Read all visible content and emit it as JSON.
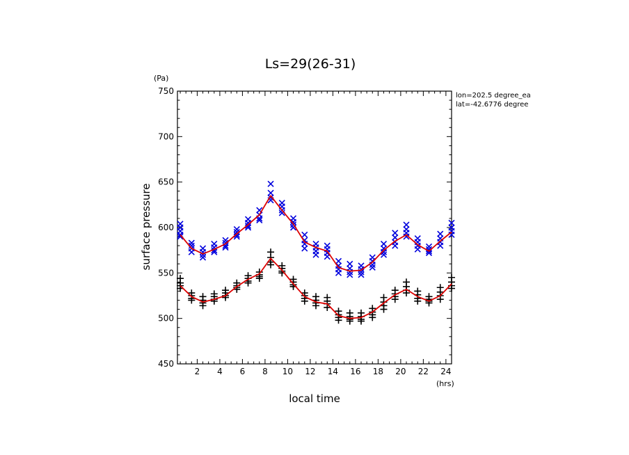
{
  "chart_data": {
    "type": "scatter",
    "title": "Ls=29(26-31)",
    "xlabel": "local time",
    "ylabel": "surface pressure",
    "x_unit": "(hrs)",
    "y_unit": "(Pa)",
    "annotation_lines": [
      "lon=202.5 degree_ea",
      "lat=-42.6776 degree"
    ],
    "xlim": [
      0.25,
      24.5
    ],
    "ylim": [
      450,
      750
    ],
    "x_ticks": [
      2,
      4,
      6,
      8,
      10,
      12,
      14,
      16,
      18,
      20,
      22,
      24
    ],
    "y_ticks": [
      450,
      500,
      550,
      600,
      650,
      700,
      750
    ],
    "grid": false,
    "colors": {
      "upper_markers": "#0000dd",
      "lower_markers": "#000000",
      "fit_line": "#dd0000"
    },
    "series": [
      {
        "marker": "x",
        "x": [
          0.5,
          0.5,
          0.5,
          0.5,
          0.5,
          1.5,
          1.5,
          1.5,
          1.5,
          2.5,
          2.5,
          2.5,
          2.5,
          3.5,
          3.5,
          3.5,
          3.5,
          4.5,
          4.5,
          4.5,
          4.5,
          5.5,
          5.5,
          5.5,
          5.5,
          6.5,
          6.5,
          6.5,
          6.5,
          7.5,
          7.5,
          7.5,
          7.5,
          8.5,
          8.5,
          8.5,
          8.5,
          9.5,
          9.5,
          9.5,
          9.5,
          10.5,
          10.5,
          10.5,
          10.5,
          11.5,
          11.5,
          11.5,
          11.5,
          12.5,
          12.5,
          12.5,
          12.5,
          13.5,
          13.5,
          13.5,
          13.5,
          14.5,
          14.5,
          14.5,
          14.5,
          15.5,
          15.5,
          15.5,
          15.5,
          16.5,
          16.5,
          16.5,
          16.5,
          17.5,
          17.5,
          17.5,
          17.5,
          18.5,
          18.5,
          18.5,
          18.5,
          19.5,
          19.5,
          19.5,
          19.5,
          20.5,
          20.5,
          20.5,
          20.5,
          21.5,
          21.5,
          21.5,
          21.5,
          22.5,
          22.5,
          22.5,
          22.5,
          23.5,
          23.5,
          23.5,
          23.5,
          24.5,
          24.5,
          24.5,
          24.5
        ],
        "y": [
          604,
          600,
          596,
          592,
          590,
          583,
          580,
          577,
          573,
          577,
          573,
          570,
          567,
          582,
          578,
          575,
          573,
          586,
          583,
          580,
          578,
          598,
          595,
          592,
          590,
          609,
          605,
          602,
          600,
          619,
          614,
          610,
          608,
          648,
          638,
          633,
          630,
          627,
          623,
          619,
          616,
          610,
          606,
          603,
          600,
          592,
          586,
          582,
          577,
          582,
          578,
          574,
          570,
          580,
          576,
          572,
          568,
          563,
          558,
          554,
          550,
          560,
          555,
          551,
          548,
          558,
          554,
          551,
          548,
          567,
          563,
          559,
          556,
          582,
          577,
          573,
          570,
          594,
          589,
          584,
          580,
          603,
          598,
          594,
          590,
          588,
          584,
          580,
          576,
          579,
          576,
          574,
          572,
          593,
          588,
          584,
          580,
          605,
          600,
          596,
          592
        ]
      },
      {
        "marker": "+",
        "x": [
          0.5,
          0.5,
          0.5,
          0.5,
          1.5,
          1.5,
          1.5,
          1.5,
          2.5,
          2.5,
          2.5,
          2.5,
          3.5,
          3.5,
          3.5,
          3.5,
          4.5,
          4.5,
          4.5,
          4.5,
          5.5,
          5.5,
          5.5,
          5.5,
          6.5,
          6.5,
          6.5,
          6.5,
          7.5,
          7.5,
          7.5,
          7.5,
          8.5,
          8.5,
          8.5,
          8.5,
          9.5,
          9.5,
          9.5,
          9.5,
          10.5,
          10.5,
          10.5,
          10.5,
          11.5,
          11.5,
          11.5,
          11.5,
          12.5,
          12.5,
          12.5,
          12.5,
          13.5,
          13.5,
          13.5,
          13.5,
          14.5,
          14.5,
          14.5,
          14.5,
          15.5,
          15.5,
          15.5,
          15.5,
          16.5,
          16.5,
          16.5,
          16.5,
          17.5,
          17.5,
          17.5,
          17.5,
          18.5,
          18.5,
          18.5,
          18.5,
          19.5,
          19.5,
          19.5,
          19.5,
          20.5,
          20.5,
          20.5,
          20.5,
          21.5,
          21.5,
          21.5,
          21.5,
          22.5,
          22.5,
          22.5,
          22.5,
          23.5,
          23.5,
          23.5,
          23.5,
          24.5,
          24.5,
          24.5,
          24.5
        ],
        "y": [
          544,
          539,
          536,
          533,
          528,
          525,
          522,
          520,
          524,
          520,
          517,
          514,
          527,
          524,
          521,
          519,
          531,
          528,
          525,
          523,
          539,
          536,
          534,
          532,
          547,
          544,
          541,
          539,
          551,
          548,
          546,
          544,
          573,
          567,
          562,
          559,
          558,
          555,
          552,
          550,
          543,
          540,
          537,
          535,
          528,
          525,
          522,
          519,
          524,
          520,
          517,
          514,
          523,
          519,
          516,
          512,
          508,
          504,
          501,
          498,
          506,
          502,
          499,
          497,
          506,
          502,
          499,
          497,
          511,
          507,
          504,
          501,
          523,
          518,
          514,
          510,
          531,
          527,
          524,
          521,
          540,
          535,
          531,
          528,
          530,
          526,
          522,
          519,
          524,
          521,
          519,
          517,
          534,
          529,
          525,
          521,
          545,
          540,
          536,
          533
        ]
      },
      {
        "type": "line",
        "x": [
          0.5,
          1.5,
          2.5,
          3.5,
          4.5,
          5.5,
          6.5,
          7.5,
          8.5,
          9.5,
          10.5,
          11.5,
          12.5,
          13.5,
          14.5,
          15.5,
          16.5,
          17.5,
          18.5,
          19.5,
          20.5,
          21.5,
          22.5,
          23.5,
          24.5
        ],
        "y": [
          592,
          577,
          571,
          576,
          582,
          593,
          603,
          614,
          635,
          619,
          604,
          584,
          578,
          574,
          556,
          552,
          553,
          562,
          575,
          585,
          592,
          581,
          574,
          585,
          595
        ]
      },
      {
        "type": "line",
        "x": [
          0.5,
          1.5,
          2.5,
          3.5,
          4.5,
          5.5,
          6.5,
          7.5,
          8.5,
          9.5,
          10.5,
          11.5,
          12.5,
          13.5,
          14.5,
          15.5,
          16.5,
          17.5,
          18.5,
          19.5,
          20.5,
          21.5,
          22.5,
          23.5,
          24.5
        ],
        "y": [
          536,
          524,
          518,
          521,
          525,
          535,
          543,
          549,
          566,
          553,
          538,
          524,
          518,
          516,
          503,
          500,
          501,
          507,
          517,
          526,
          532,
          524,
          519,
          525,
          538
        ]
      }
    ]
  }
}
